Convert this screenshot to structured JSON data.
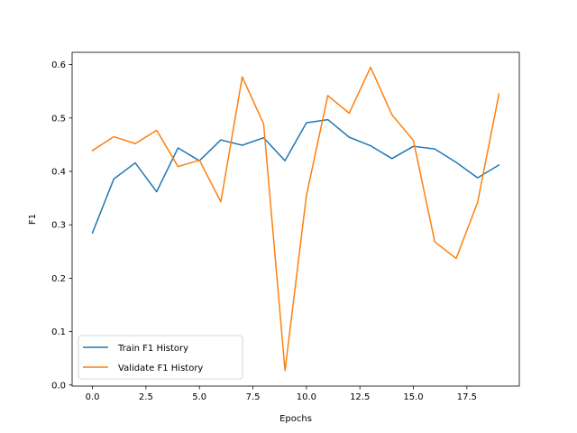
{
  "chart_data": {
    "type": "line",
    "title": "",
    "xlabel": "Epochs",
    "ylabel": "F1",
    "xlim": [
      -0.95,
      19.95
    ],
    "ylim": [
      -0.002,
      0.623
    ],
    "xticks": [
      0.0,
      2.5,
      5.0,
      7.5,
      10.0,
      12.5,
      15.0,
      17.5
    ],
    "xtick_labels": [
      "0.0",
      "2.5",
      "5.0",
      "7.5",
      "10.0",
      "12.5",
      "15.0",
      "17.5"
    ],
    "yticks": [
      0.0,
      0.1,
      0.2,
      0.3,
      0.4,
      0.5,
      0.6
    ],
    "ytick_labels": [
      "0.0",
      "0.1",
      "0.2",
      "0.3",
      "0.4",
      "0.5",
      "0.6"
    ],
    "grid": false,
    "legend_position": "lower-left",
    "x": [
      0,
      1,
      2,
      3,
      4,
      5,
      6,
      7,
      8,
      9,
      10,
      11,
      12,
      13,
      14,
      15,
      16,
      17,
      18,
      19
    ],
    "series": [
      {
        "name": "Train F1 History",
        "color": "#1f77b4",
        "values": [
          0.285,
          0.386,
          0.416,
          0.362,
          0.444,
          0.42,
          0.459,
          0.449,
          0.463,
          0.42,
          0.491,
          0.497,
          0.464,
          0.448,
          0.424,
          0.447,
          0.442,
          0.417,
          0.388,
          0.412
        ]
      },
      {
        "name": "Validate F1 History",
        "color": "#ff7f0e",
        "values": [
          0.439,
          0.465,
          0.452,
          0.477,
          0.409,
          0.421,
          0.343,
          0.577,
          0.489,
          0.027,
          0.355,
          0.542,
          0.509,
          0.595,
          0.506,
          0.458,
          0.268,
          0.237,
          0.342,
          0.545
        ]
      }
    ]
  }
}
